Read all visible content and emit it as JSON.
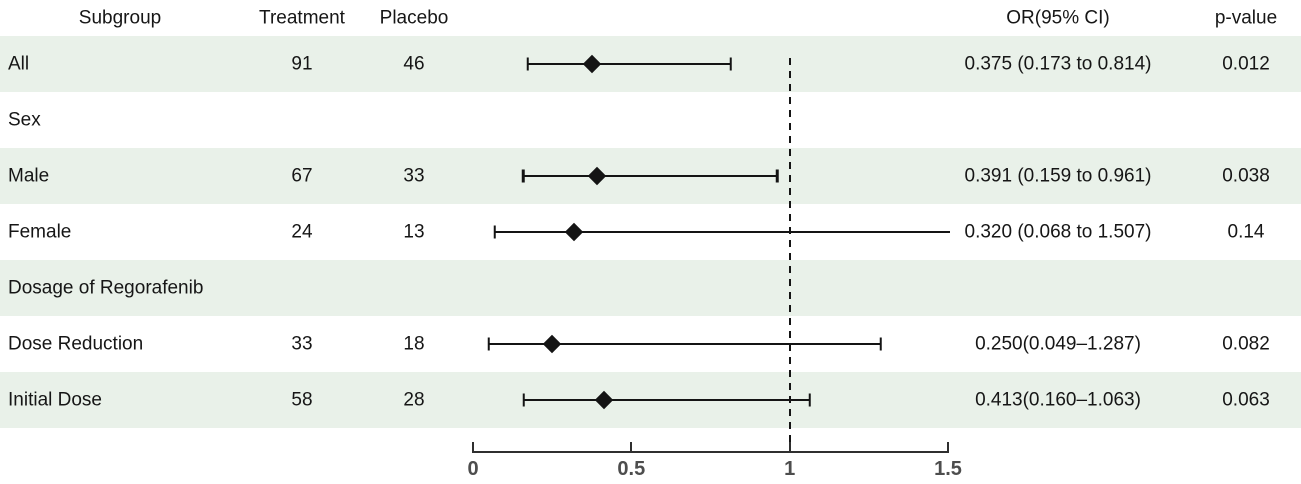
{
  "colors": {
    "stripe": "#e9f1e9",
    "marker": "#141414",
    "axis": "#2f2f2f",
    "axis_label": "#4d4d4d",
    "text": "#161616"
  },
  "header": {
    "subgroup": "Subgroup",
    "treatment": "Treatment",
    "placebo": "Placebo",
    "or_ci": "OR(95% CI)",
    "p_value": "p-value"
  },
  "chart_data": {
    "type": "forest",
    "xlim": [
      0,
      1.5
    ],
    "x_ticks": [
      0,
      0.5,
      1,
      1.5
    ],
    "x_tick_labels": [
      "0",
      "0.5",
      "1",
      "1.5"
    ],
    "reference_line": 1,
    "grid": false,
    "rows": [
      {
        "label": "All",
        "section": false,
        "shaded": true,
        "treatment": "91",
        "placebo": "46",
        "or": 0.375,
        "ci_low": 0.173,
        "ci_high": 0.814,
        "cap_high": true,
        "or_text": "0.375 (0.173 to 0.814)",
        "p": "0.012"
      },
      {
        "label": "Sex",
        "section": true,
        "shaded": false
      },
      {
        "label": "Male",
        "section": false,
        "shaded": true,
        "treatment": "67",
        "placebo": "33",
        "or": 0.391,
        "ci_low": 0.159,
        "ci_high": 0.961,
        "cap_high": true,
        "or_text": "0.391 (0.159 to 0.961)",
        "p": "0.038"
      },
      {
        "label": "Female",
        "section": false,
        "shaded": false,
        "treatment": "24",
        "placebo": "13",
        "or": 0.32,
        "ci_low": 0.068,
        "ci_high": 1.507,
        "cap_high": false,
        "or_text": "0.320 (0.068 to 1.507)",
        "p": "0.14"
      },
      {
        "label": "Dosage of Regorafenib",
        "section": true,
        "shaded": true
      },
      {
        "label": "Dose Reduction",
        "section": false,
        "shaded": false,
        "treatment": "33",
        "placebo": "18",
        "or": 0.25,
        "ci_low": 0.049,
        "ci_high": 1.287,
        "cap_high": true,
        "or_text": "0.250(0.049–1.287)",
        "p": "0.082"
      },
      {
        "label": "Initial Dose",
        "section": false,
        "shaded": true,
        "treatment": "58",
        "placebo": "28",
        "or": 0.413,
        "ci_low": 0.16,
        "ci_high": 1.063,
        "cap_high": true,
        "or_text": "0.413(0.160–1.063)",
        "p": "0.063"
      }
    ]
  }
}
